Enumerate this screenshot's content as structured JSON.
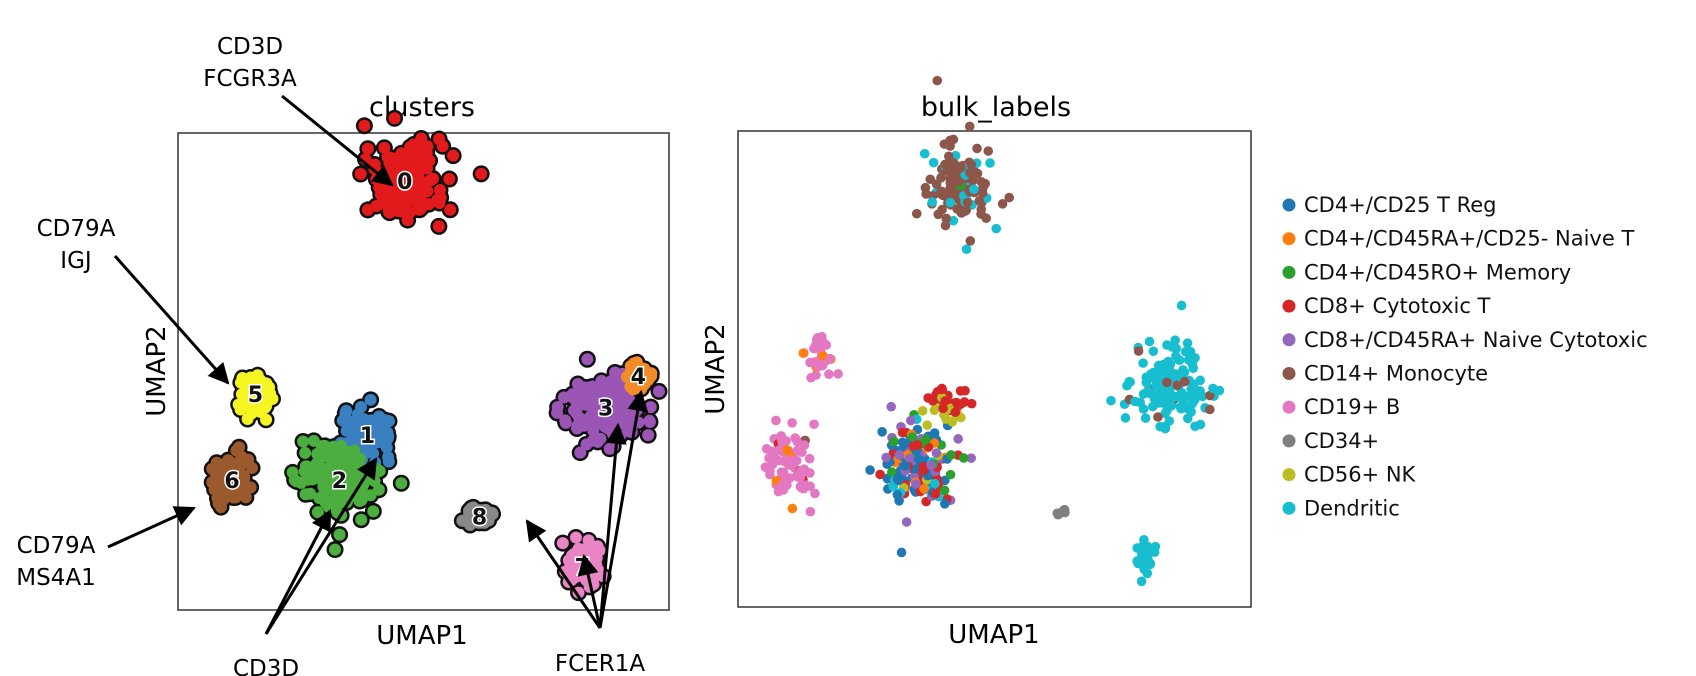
{
  "chart_data": [
    {
      "type": "scatter",
      "title": "clusters",
      "xlabel": "UMAP1",
      "ylabel": "UMAP2",
      "clusters": [
        {
          "label": "0",
          "color": "#e31a1c",
          "center": [
            4.6,
            9.2
          ],
          "spread": [
            1.0,
            1.0
          ]
        },
        {
          "label": "1",
          "color": "#3a7fc0",
          "center": [
            3.8,
            3.6
          ],
          "spread": [
            0.6,
            0.6
          ]
        },
        {
          "label": "2",
          "color": "#4cae3f",
          "center": [
            3.2,
            2.6
          ],
          "spread": [
            1.0,
            0.9
          ]
        },
        {
          "label": "3",
          "color": "#9b55b5",
          "center": [
            8.9,
            4.2
          ],
          "spread": [
            1.0,
            0.9
          ]
        },
        {
          "label": "4",
          "color": "#f28c28",
          "center": [
            9.6,
            4.9
          ],
          "spread": [
            0.25,
            0.3
          ]
        },
        {
          "label": "5",
          "color": "#f5f522",
          "center": [
            1.4,
            4.5
          ],
          "spread": [
            0.35,
            0.5
          ]
        },
        {
          "label": "6",
          "color": "#9b5a2e",
          "center": [
            0.9,
            2.6
          ],
          "spread": [
            0.45,
            0.6
          ]
        },
        {
          "label": "7",
          "color": "#e985c4",
          "center": [
            8.4,
            0.7
          ],
          "spread": [
            0.5,
            0.5
          ]
        },
        {
          "label": "8",
          "color": "#888888",
          "center": [
            6.2,
            1.8
          ],
          "spread": [
            0.3,
            0.2
          ]
        }
      ],
      "annotations": [
        {
          "text": "CD3D FCGR3A",
          "lines": [
            "CD3D",
            "FCGR3A"
          ],
          "target_cluster": "0"
        },
        {
          "text": "CD79A IGJ",
          "lines": [
            "CD79A",
            "IGJ"
          ],
          "target_cluster": "5"
        },
        {
          "text": "CD79A MS4A1",
          "lines": [
            "CD79A",
            "MS4A1"
          ],
          "target_cluster": "6"
        },
        {
          "text": "CD3D",
          "lines": [
            "CD3D"
          ],
          "target_cluster": [
            "1",
            "2"
          ]
        },
        {
          "text": "FCER1A",
          "lines": [
            "FCER1A"
          ],
          "target_cluster": [
            "3",
            "4",
            "7",
            "8"
          ]
        }
      ]
    },
    {
      "type": "scatter",
      "title": "bulk_labels",
      "xlabel": "UMAP1",
      "ylabel": "UMAP2",
      "legend_position": "right",
      "series": [
        {
          "name": "CD4+/CD25 T Reg",
          "color": "#1f77b4"
        },
        {
          "name": "CD4+/CD45RA+/CD25- Naive T",
          "color": "#ff7f0e"
        },
        {
          "name": "CD4+/CD45RO+ Memory",
          "color": "#2ca02c"
        },
        {
          "name": "CD8+ Cytotoxic T",
          "color": "#d62728"
        },
        {
          "name": "CD8+/CD45RA+ Naive Cytotoxic",
          "color": "#9467bd"
        },
        {
          "name": "CD14+ Monocyte",
          "color": "#8c564b"
        },
        {
          "name": "CD19+ B",
          "color": "#e377c2"
        },
        {
          "name": "CD34+",
          "color": "#7f7f7f"
        },
        {
          "name": "CD56+ NK",
          "color": "#bcbd22"
        },
        {
          "name": "Dendritic",
          "color": "#17becf"
        }
      ]
    }
  ]
}
